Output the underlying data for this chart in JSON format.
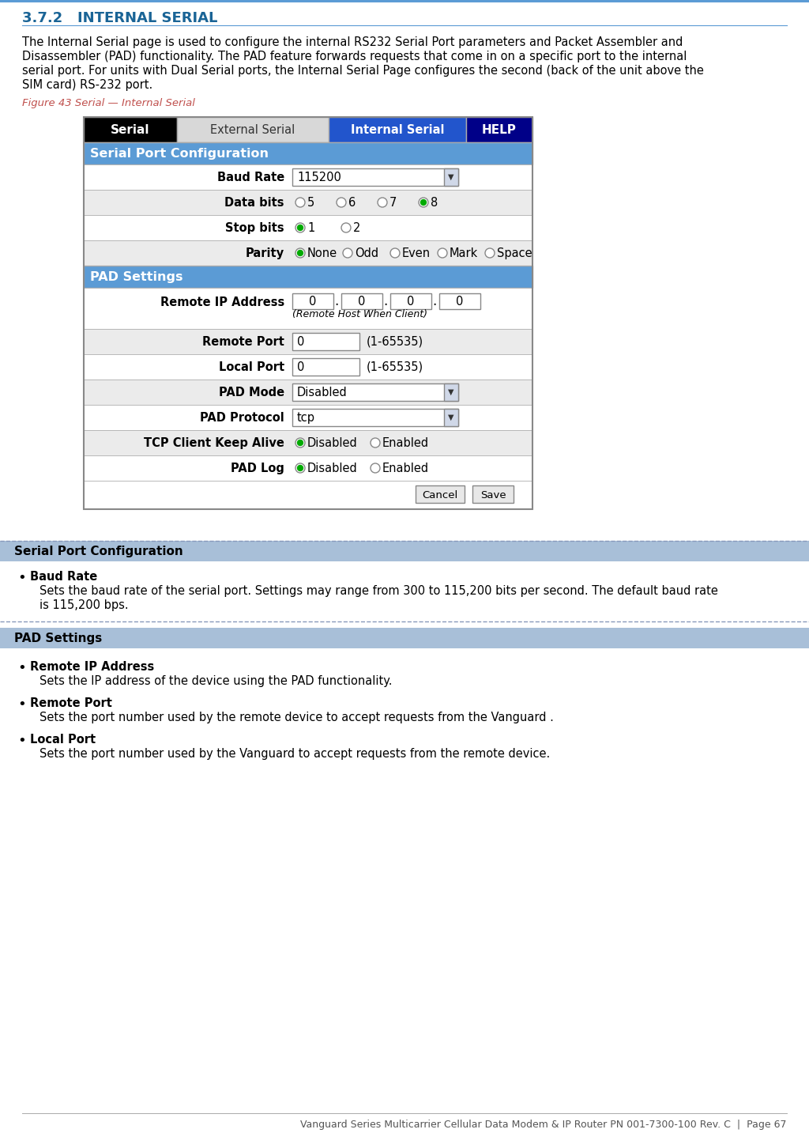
{
  "title": "3.7.2   INTERNAL SERIAL",
  "title_color": "#1a6496",
  "body_lines": [
    "The Internal Serial page is used to configure the internal RS232 Serial Port parameters and Packet Assembler and",
    "Disassembler (PAD) functionality. The PAD feature forwards requests that come in on a specific port to the internal",
    "serial port. For units with Dual Serial ports, the Internal Serial Page configures the second (back of the unit above the",
    "SIM card) RS-232 port."
  ],
  "figure_label": "Figure 43 Serial — Internal Serial",
  "figure_label_color": "#c0504d",
  "nav_tab1_text": "Serial",
  "nav_tab1_bg": "#000000",
  "nav_tab2_text": "External Serial",
  "nav_tab2_bg": "#d8d8d8",
  "nav_tab3_text": "Internal Serial",
  "nav_tab3_bg": "#2255cc",
  "nav_tab4_text": "HELP",
  "nav_tab4_bg": "#000088",
  "section1_text": "Serial Port Configuration",
  "section1_bg": "#5b9bd5",
  "section2_text": "PAD Settings",
  "section2_bg": "#5b9bd5",
  "row_alt_bg": "#ebebeb",
  "row_bg": "#ffffff",
  "green_color": "#00aa00",
  "bullet_sec1_bg": "#a8bfd8",
  "bullet_sec2_bg": "#a8bfd8",
  "bullet_sec1_text": "Serial Port Configuration",
  "bullet_sec2_text": "PAD Settings",
  "footer": "Vanguard Series Multicarrier Cellular Data Modem & IP Router PN 001-7300-100 Rev. C  |  Page 67",
  "page_bg": "#ffffff",
  "top_line_color": "#5b9bd5",
  "divider_color": "#aaaacc"
}
